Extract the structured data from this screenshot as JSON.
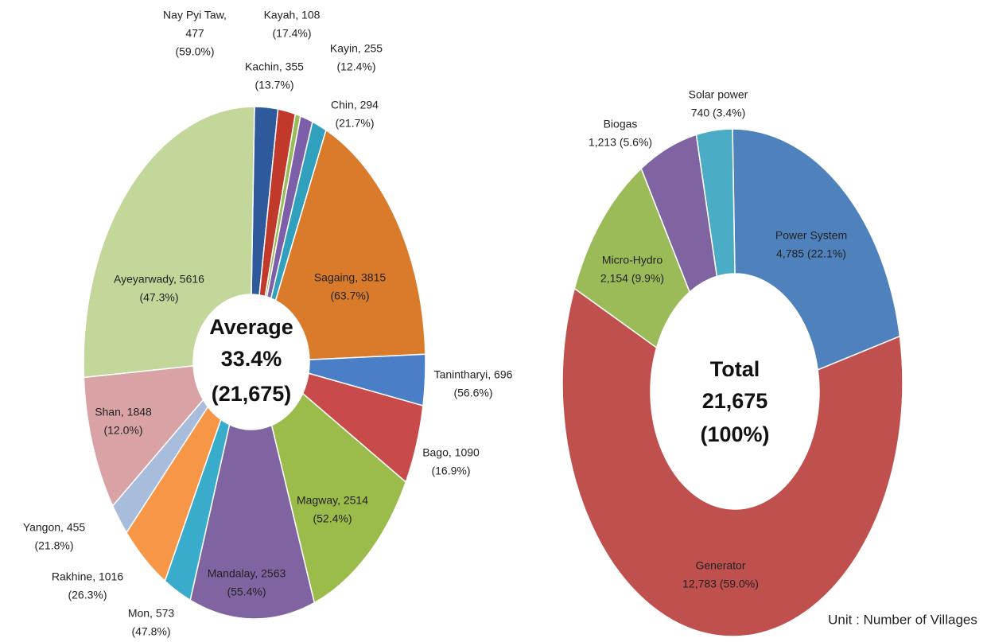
{
  "chart_data": [
    {
      "type": "donut",
      "categories": [
        "Nay Pyi Taw",
        "Kachin",
        "Kayah",
        "Kayin",
        "Chin",
        "Sagaing",
        "Tanintharyi",
        "Bago",
        "Magway",
        "Mandalay",
        "Mon",
        "Rakhine",
        "Yangon",
        "Shan",
        "Ayeyarwady"
      ],
      "values": [
        477,
        355,
        108,
        255,
        294,
        3815,
        696,
        1090,
        2514,
        2563,
        573,
        1016,
        455,
        1848,
        5616
      ],
      "value_labels": [
        [
          "Nay Pyi Taw,",
          "477",
          "(59.0%)"
        ],
        [
          "Kachin, 355",
          "(13.7%)"
        ],
        [
          "Kayah, 108",
          "(17.4%)"
        ],
        [
          "Kayin, 255",
          "(12.4%)"
        ],
        [
          "Chin, 294",
          "(21.7%)"
        ],
        [
          "Sagaing, 3815",
          "(63.7%)"
        ],
        [
          "Tanintharyi, 696",
          "(56.6%)"
        ],
        [
          "Bago, 1090",
          "(16.9%)"
        ],
        [
          "Magway, 2514",
          "(52.4%)"
        ],
        [
          "Mandalay, 2563",
          "(55.4%)"
        ],
        [
          "Mon, 573",
          "(47.8%)"
        ],
        [
          "Rakhine, 1016",
          "(26.3%)"
        ],
        [
          "Yangon, 455",
          "(21.8%)"
        ],
        [
          "Shan, 1848",
          "(12.0%)"
        ],
        [
          "Ayeyarwady, 5616",
          "(47.3%)"
        ]
      ],
      "colors": [
        "#2e5a9c",
        "#c0392b",
        "#9bbb59",
        "#7d5ea8",
        "#31a0bd",
        "#d97b2b",
        "#4a7fc8",
        "#c94a4a",
        "#9bbb4a",
        "#8064a2",
        "#3aaccb",
        "#f79646",
        "#a8bcdc",
        "#d9a3a6",
        "#c4d79b"
      ],
      "center_text": [
        "Average",
        "33.4%",
        "(21,675)"
      ]
    },
    {
      "type": "donut",
      "categories": [
        "Power System",
        "Generator",
        "Micro-Hydro",
        "Biogas",
        "Solar power"
      ],
      "values": [
        4785,
        12783,
        2154,
        1213,
        740
      ],
      "value_labels": [
        [
          "Power System",
          "4,785 (22.1%)"
        ],
        [
          "Generator",
          "12,783 (59.0%)"
        ],
        [
          "Micro-Hydro",
          "2,154 (9.9%)"
        ],
        [
          "Biogas",
          "1,213 (5.6%)"
        ],
        [
          "Solar power",
          "740 (3.4%)"
        ]
      ],
      "colors": [
        "#4f81bd",
        "#c0504d",
        "#9bbb59",
        "#8064a2",
        "#4bacc6"
      ],
      "center_text": [
        "Total",
        "21,675",
        "(100%)"
      ],
      "annotation": "Unit : Number of Villages"
    }
  ]
}
